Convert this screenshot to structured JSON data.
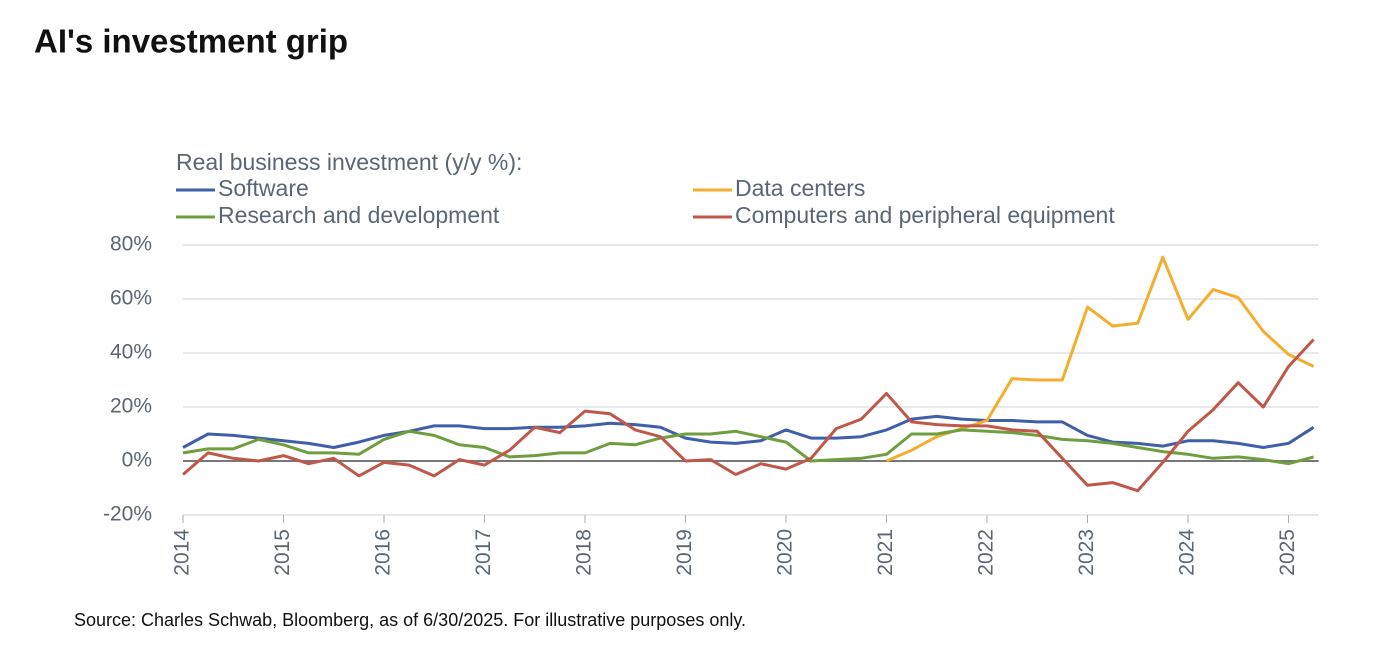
{
  "chart_data": {
    "type": "line",
    "title": "AI's investment grip",
    "legend_title": "Real business investment (y/y %):",
    "source": "Source: Charles Schwab, Bloomberg, as of 6/30/2025. For illustrative purposes only.",
    "x": [
      2014,
      2014.25,
      2014.5,
      2014.75,
      2015,
      2015.25,
      2015.5,
      2015.75,
      2016,
      2016.25,
      2016.5,
      2016.75,
      2017,
      2017.25,
      2017.5,
      2017.75,
      2018,
      2018.25,
      2018.5,
      2018.75,
      2019,
      2019.25,
      2019.5,
      2019.75,
      2020,
      2020.25,
      2020.5,
      2020.75,
      2021,
      2021.25,
      2021.5,
      2021.75,
      2022,
      2022.25,
      2022.5,
      2022.75,
      2023,
      2023.25,
      2023.5,
      2023.75,
      2024,
      2024.25,
      2024.5,
      2024.75,
      2025,
      2025.25
    ],
    "series": [
      {
        "name": "Software",
        "color": "#3f5fa8",
        "values": [
          5,
          10,
          9.5,
          8.5,
          7.5,
          6.5,
          5,
          7,
          9.5,
          11,
          13,
          13,
          12,
          12,
          12.5,
          12.5,
          13,
          14,
          13.5,
          12.5,
          8.5,
          7,
          6.5,
          7.5,
          11.5,
          8.5,
          8.5,
          9,
          11.5,
          15.5,
          16.5,
          15.5,
          15,
          15,
          14.5,
          14.5,
          9.5,
          7,
          6.5,
          5.5,
          7.5,
          7.5,
          6.5,
          5,
          6.5,
          12.5
        ]
      },
      {
        "name": "Data centers",
        "color": "#f3ae2f",
        "values": [
          null,
          null,
          null,
          null,
          null,
          null,
          null,
          null,
          null,
          null,
          null,
          null,
          null,
          null,
          null,
          null,
          null,
          null,
          null,
          null,
          null,
          null,
          null,
          null,
          null,
          null,
          null,
          null,
          0,
          4,
          9,
          12,
          15,
          30.5,
          30,
          30,
          57,
          50,
          51,
          75.5,
          52.5,
          63.5,
          60.5,
          48,
          39.5,
          35
        ]
      },
      {
        "name": "Research and development",
        "color": "#6f9e3f",
        "values": [
          3,
          4.5,
          4.5,
          8,
          6,
          3,
          3,
          2.5,
          8,
          11,
          9.5,
          6,
          5,
          1.5,
          2,
          3,
          3,
          6.5,
          6,
          8.5,
          10,
          10,
          11,
          9,
          7,
          0,
          0.5,
          1,
          2.5,
          10,
          10,
          11.5,
          11,
          10.5,
          9.5,
          8,
          7.5,
          6.5,
          5,
          3.5,
          2.5,
          1,
          1.5,
          0.5,
          -1,
          1.5
        ]
      },
      {
        "name": "Computers and peripheral equipment",
        "color": "#c0584a",
        "values": [
          -5,
          3,
          1,
          0,
          2,
          -1,
          1,
          -5.5,
          -0.5,
          -1.5,
          -5.5,
          0.5,
          -1.5,
          4,
          12.5,
          10.5,
          18.5,
          17.5,
          11.5,
          9,
          0,
          0.5,
          -5,
          -1,
          -3,
          1,
          12,
          15.5,
          25,
          14.5,
          13.5,
          13,
          13,
          11.5,
          11,
          1,
          -9,
          -8,
          -11,
          -0.5,
          11,
          19,
          29,
          20,
          35,
          45
        ]
      }
    ],
    "xlim": [
      2014,
      2025.3
    ],
    "xticks": [
      2014,
      2015,
      2016,
      2017,
      2018,
      2019,
      2020,
      2021,
      2022,
      2023,
      2024,
      2025
    ],
    "ylim": [
      -20,
      80
    ],
    "yticks": [
      {
        "value": -20,
        "label": "-20%"
      },
      {
        "value": 0,
        "label": "0%"
      },
      {
        "value": 20,
        "label": "20%"
      },
      {
        "value": 40,
        "label": "40%"
      },
      {
        "value": 60,
        "label": "60%"
      },
      {
        "value": 80,
        "label": "80%"
      }
    ],
    "grid": true
  }
}
